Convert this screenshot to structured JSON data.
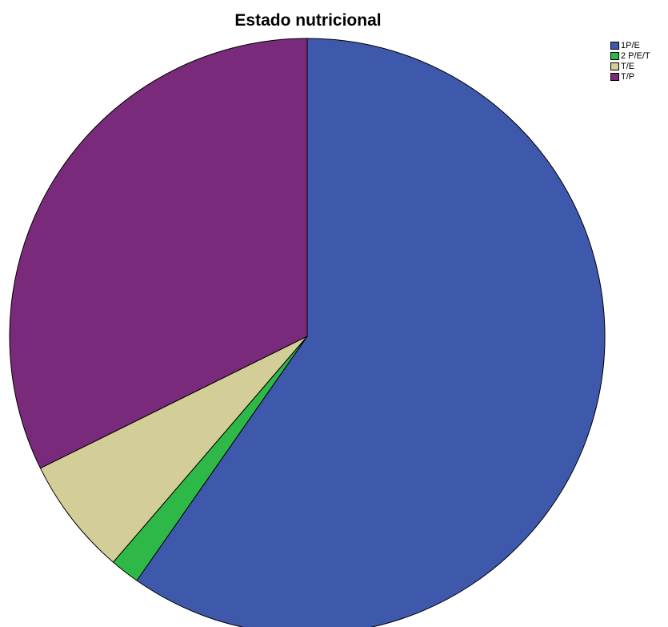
{
  "chart_data": {
    "type": "pie",
    "title": "Estado nutricional",
    "legend_position": "top-right",
    "start_angle_deg": 0,
    "direction": "clockwise",
    "slices": [
      {
        "label": "1P/E",
        "value": 59.7,
        "color": "#3E58AC"
      },
      {
        "label": "2 P/E/T",
        "value": 1.6,
        "color": "#2EB848"
      },
      {
        "label": "T/E",
        "value": 6.4,
        "color": "#D3CE97"
      },
      {
        "label": "T/P",
        "value": 32.3,
        "color": "#7A2A7A"
      }
    ]
  }
}
